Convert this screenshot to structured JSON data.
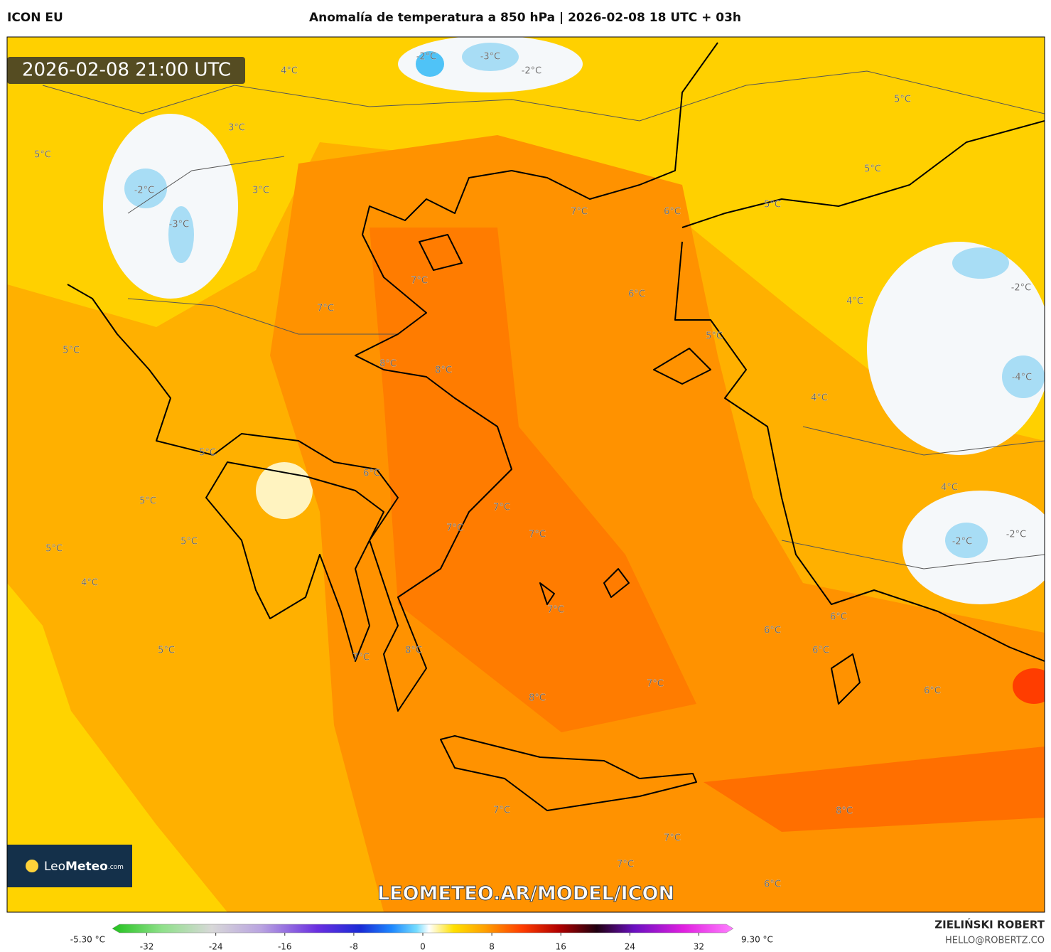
{
  "header": {
    "model": "ICON EU",
    "title": "Anomalía de temperatura a 850 hPa | 2026-02-08 18 UTC + 03h"
  },
  "map": {
    "valid_time": "2026-02-08 21:00 UTC",
    "labels": [
      "4°C",
      "-2°C",
      "-3°C",
      "-2°C",
      "5°C",
      "3°C",
      "5°C",
      "-2°C",
      "3°C",
      "5°C",
      "5°C",
      "7°C",
      "6°C",
      "-3°C",
      "7°C",
      "6°C",
      "4°C",
      "-2°C",
      "7°C",
      "5°C",
      "5°C",
      "8°C",
      "8°C",
      "4°C",
      "-4°C",
      "5°C",
      "6°C",
      "4°C",
      "5°C",
      "7°C",
      "7°C",
      "7°C",
      "-2°C",
      "-2°C",
      "5°C",
      "5°C",
      "4°C",
      "7°C",
      "6°C",
      "6°C",
      "5°C",
      "8°C",
      "6°C",
      "7°C",
      "7°C",
      "6°C",
      "8°C",
      "7°C",
      "8°C",
      "7°C",
      "7°C",
      "6°C"
    ]
  },
  "logo": {
    "light": "Leo",
    "bold": "Meteo",
    "suffix": ".com"
  },
  "watermark": "LEOMETEO.AR/MODEL/ICON",
  "colorbar": {
    "min_label": "-5.30 °C",
    "max_label": "9.30 °C",
    "xlim": [
      -36,
      36
    ],
    "ticks": [
      -32,
      -24,
      -16,
      -8,
      0,
      8,
      16,
      24,
      32
    ]
  },
  "footer": {
    "author": "ZIELIŃSKI ROBERT",
    "email": "HELLO@ROBERTZ.CO"
  }
}
